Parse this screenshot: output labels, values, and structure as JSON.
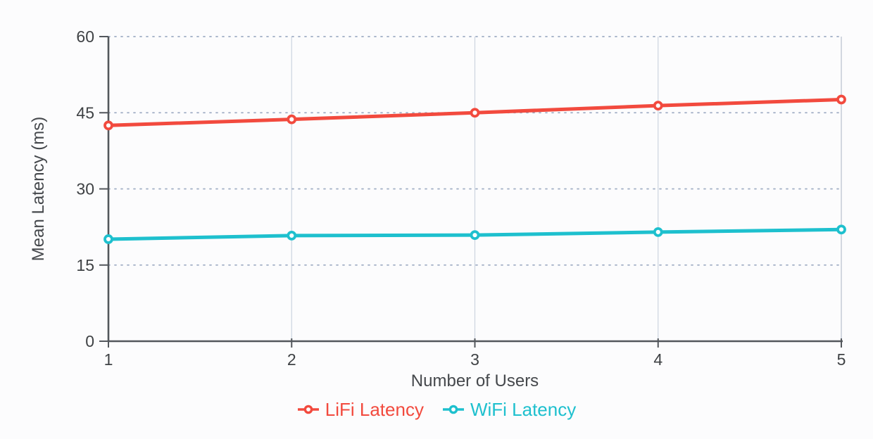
{
  "chart_data": {
    "type": "line",
    "x": [
      1,
      2,
      3,
      4,
      5
    ],
    "series": [
      {
        "name": "LiFi Latency",
        "color": "#f24a3e",
        "values": [
          42.5,
          43.7,
          45.0,
          46.4,
          47.6
        ]
      },
      {
        "name": "WiFi Latency",
        "color": "#1ec0ce",
        "values": [
          20.1,
          20.8,
          20.9,
          21.5,
          22.0
        ]
      }
    ],
    "title": "",
    "xlabel": "Number of Users",
    "ylabel": "Mean Latency (ms)",
    "ylim": [
      0,
      60
    ],
    "yticks": [
      0,
      15,
      30,
      45,
      60
    ],
    "xtick_labels": [
      "1",
      "2",
      "3",
      "4",
      "5"
    ],
    "grid": true,
    "legend_position": "bottom",
    "marker": "open-circle",
    "colors": {
      "axis": "#53575c",
      "tick_label": "#3f4245",
      "axis_title": "#45484c",
      "grid_vertical": "#ccd4e0",
      "grid_dotted": "#9fadc4",
      "plot_border_right": "#b6bfcc",
      "background": "#fcfcfd",
      "marker_fill": "#ffffff"
    }
  }
}
